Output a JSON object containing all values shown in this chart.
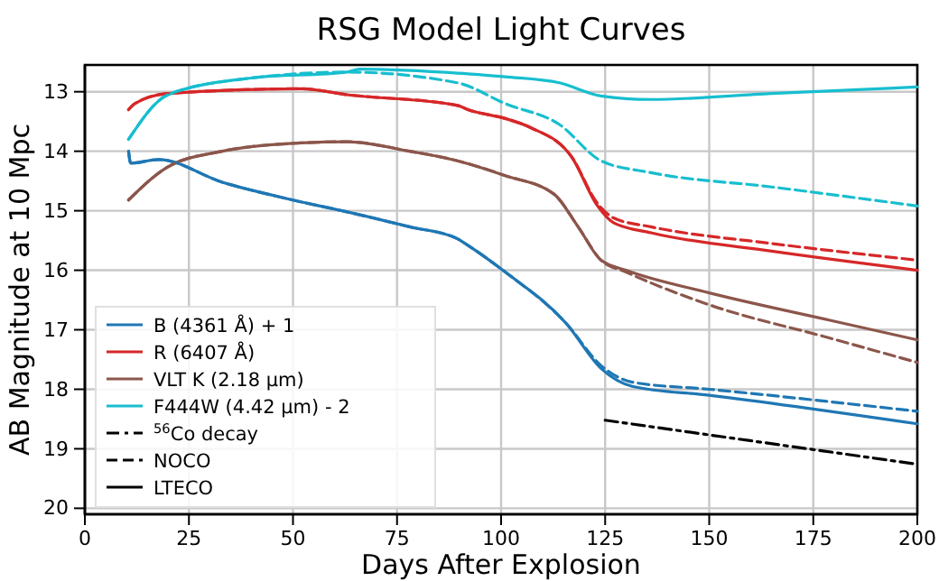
{
  "chart_data": {
    "type": "line",
    "title": "RSG Model Light Curves",
    "xlabel": "Days After Explosion",
    "ylabel": "AB Magnitude at 10 Mpc",
    "xlim": [
      0,
      200
    ],
    "xticks": [
      0,
      25,
      50,
      75,
      100,
      125,
      150,
      175,
      200
    ],
    "ylim": [
      20.1,
      12.55
    ],
    "yticks": [
      13,
      14,
      15,
      16,
      17,
      18,
      19,
      20
    ],
    "grid": true,
    "legend": "bottom left",
    "series": [
      {
        "name": "B (4361 Å) + 1",
        "color": "#1f77b4",
        "line_style": "solid",
        "x": [
          10.5,
          11,
          17.7,
          33,
          50,
          63,
          78,
          89.5,
          92,
          101,
          115.6,
          124,
          131.5,
          150,
          200
        ],
        "values": [
          14.0,
          14.2,
          14.14,
          14.52,
          14.82,
          15.02,
          15.27,
          15.47,
          15.58,
          16.03,
          16.89,
          17.65,
          17.95,
          18.1,
          18.58
        ]
      },
      {
        "name": "R (6407 Å)",
        "color": "#d62728",
        "line_style": "solid",
        "x": [
          10.5,
          12,
          20,
          52,
          63,
          89.5,
          92,
          101,
          107,
          117,
          123,
          127,
          136,
          165,
          200
        ],
        "values": [
          13.3,
          13.2,
          13.03,
          12.95,
          13.05,
          13.23,
          13.3,
          13.45,
          13.6,
          14.1,
          14.9,
          15.2,
          15.37,
          15.68,
          16.0
        ]
      },
      {
        "name": "VLT K (2.18 μm)",
        "color": "#8c564b",
        "line_style": "solid",
        "x": [
          10.5,
          20,
          33,
          52,
          63,
          78,
          89.5,
          101,
          112.7,
          118.5,
          124,
          130,
          150,
          179,
          200
        ],
        "values": [
          14.82,
          14.26,
          14.0,
          13.86,
          13.84,
          14.0,
          14.16,
          14.41,
          14.72,
          15.27,
          15.83,
          16.0,
          16.38,
          16.84,
          17.17
        ]
      },
      {
        "name": "F444W (4.42 μm) - 2",
        "color": "#17becf",
        "line_style": "solid",
        "x": [
          10.5,
          20,
          40,
          63,
          66,
          92,
          101,
          114,
          124,
          136,
          165,
          200
        ],
        "values": [
          13.8,
          13.05,
          12.77,
          12.67,
          12.62,
          12.7,
          12.75,
          12.85,
          13.07,
          13.13,
          13.03,
          12.92
        ]
      },
      {
        "name": "$^{56}$Co decay",
        "color": "#000000",
        "line_style": "dashdot",
        "x": [
          125,
          200
        ],
        "values": [
          18.52,
          19.26
        ]
      },
      {
        "color": "#1f77b4",
        "line_style": "dashed",
        "x": [
          10.5,
          11,
          17.7,
          33,
          50,
          63,
          78,
          89.5,
          92,
          101,
          115.6,
          124,
          131.5,
          150,
          200
        ],
        "values": [
          14.0,
          14.2,
          14.14,
          14.52,
          14.82,
          15.02,
          15.27,
          15.47,
          15.58,
          16.03,
          16.89,
          17.6,
          17.88,
          18.0,
          18.37
        ]
      },
      {
        "color": "#d62728",
        "line_style": "dashed",
        "x": [
          10.5,
          12,
          20,
          52,
          63,
          89.5,
          92,
          101,
          107,
          117,
          123,
          127,
          136,
          165,
          200
        ],
        "values": [
          13.3,
          13.2,
          13.03,
          12.95,
          13.05,
          13.23,
          13.3,
          13.45,
          13.6,
          14.1,
          14.86,
          15.12,
          15.27,
          15.55,
          15.83
        ]
      },
      {
        "color": "#8c564b",
        "line_style": "dashed",
        "x": [
          10.5,
          20,
          33,
          52,
          63,
          78,
          89.5,
          101,
          112.7,
          118.5,
          124,
          130,
          150,
          179,
          200
        ],
        "values": [
          14.82,
          14.26,
          14.0,
          13.86,
          13.84,
          14.0,
          14.16,
          14.41,
          14.72,
          15.27,
          15.83,
          16.03,
          16.58,
          17.14,
          17.55
        ]
      },
      {
        "color": "#17becf",
        "line_style": "dashed",
        "x": [
          10.5,
          20,
          40,
          63,
          89.5,
          101,
          114,
          124,
          136,
          165,
          200
        ],
        "values": [
          13.8,
          13.05,
          12.77,
          12.67,
          12.85,
          13.2,
          13.55,
          14.16,
          14.36,
          14.6,
          14.92
        ]
      },
      {
        "name": "NOCO",
        "color": "#000000",
        "line_style": "dashed"
      },
      {
        "name": "LTECO",
        "color": "#000000",
        "line_style": "solid"
      }
    ]
  }
}
